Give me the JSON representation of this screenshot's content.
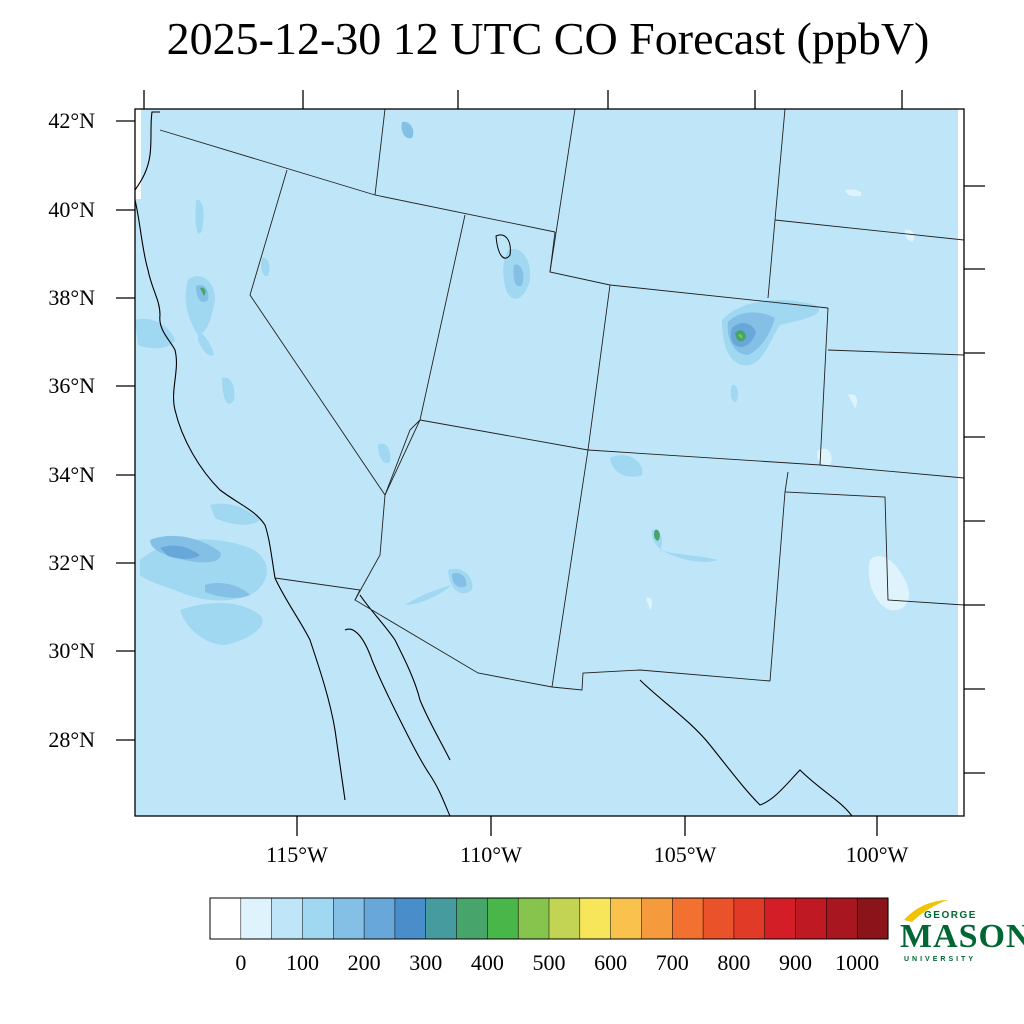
{
  "title": "2025-12-30 12 UTC CO Forecast (ppbV)",
  "lat_labels": [
    "42°N",
    "40°N",
    "38°N",
    "36°N",
    "34°N",
    "32°N",
    "30°N",
    "28°N"
  ],
  "lon_labels": [
    "115°W",
    "110°W",
    "105°W",
    "100°W"
  ],
  "colorbar": {
    "colors": [
      "#ffffff",
      "#dff3fc",
      "#bfe6f8",
      "#a0d8f2",
      "#84bfe5",
      "#68a7da",
      "#4a8dcb",
      "#469b9e",
      "#47a56c",
      "#48b648",
      "#86c44e",
      "#c3d455",
      "#f7e65a",
      "#f8c24c",
      "#f69b3d",
      "#f37130",
      "#ea5229",
      "#e13a26",
      "#d31e27",
      "#bf1a23",
      "#a8171f",
      "#8b141a"
    ],
    "tick_labels": [
      "0",
      "100",
      "200",
      "300",
      "400",
      "500",
      "600",
      "700",
      "800",
      "900",
      "1000"
    ]
  },
  "logo": {
    "line1": "GEORGE",
    "line2": "MASON",
    "line3": "UNIVERSITY",
    "green": "#006633",
    "gold": "#f2c300"
  }
}
